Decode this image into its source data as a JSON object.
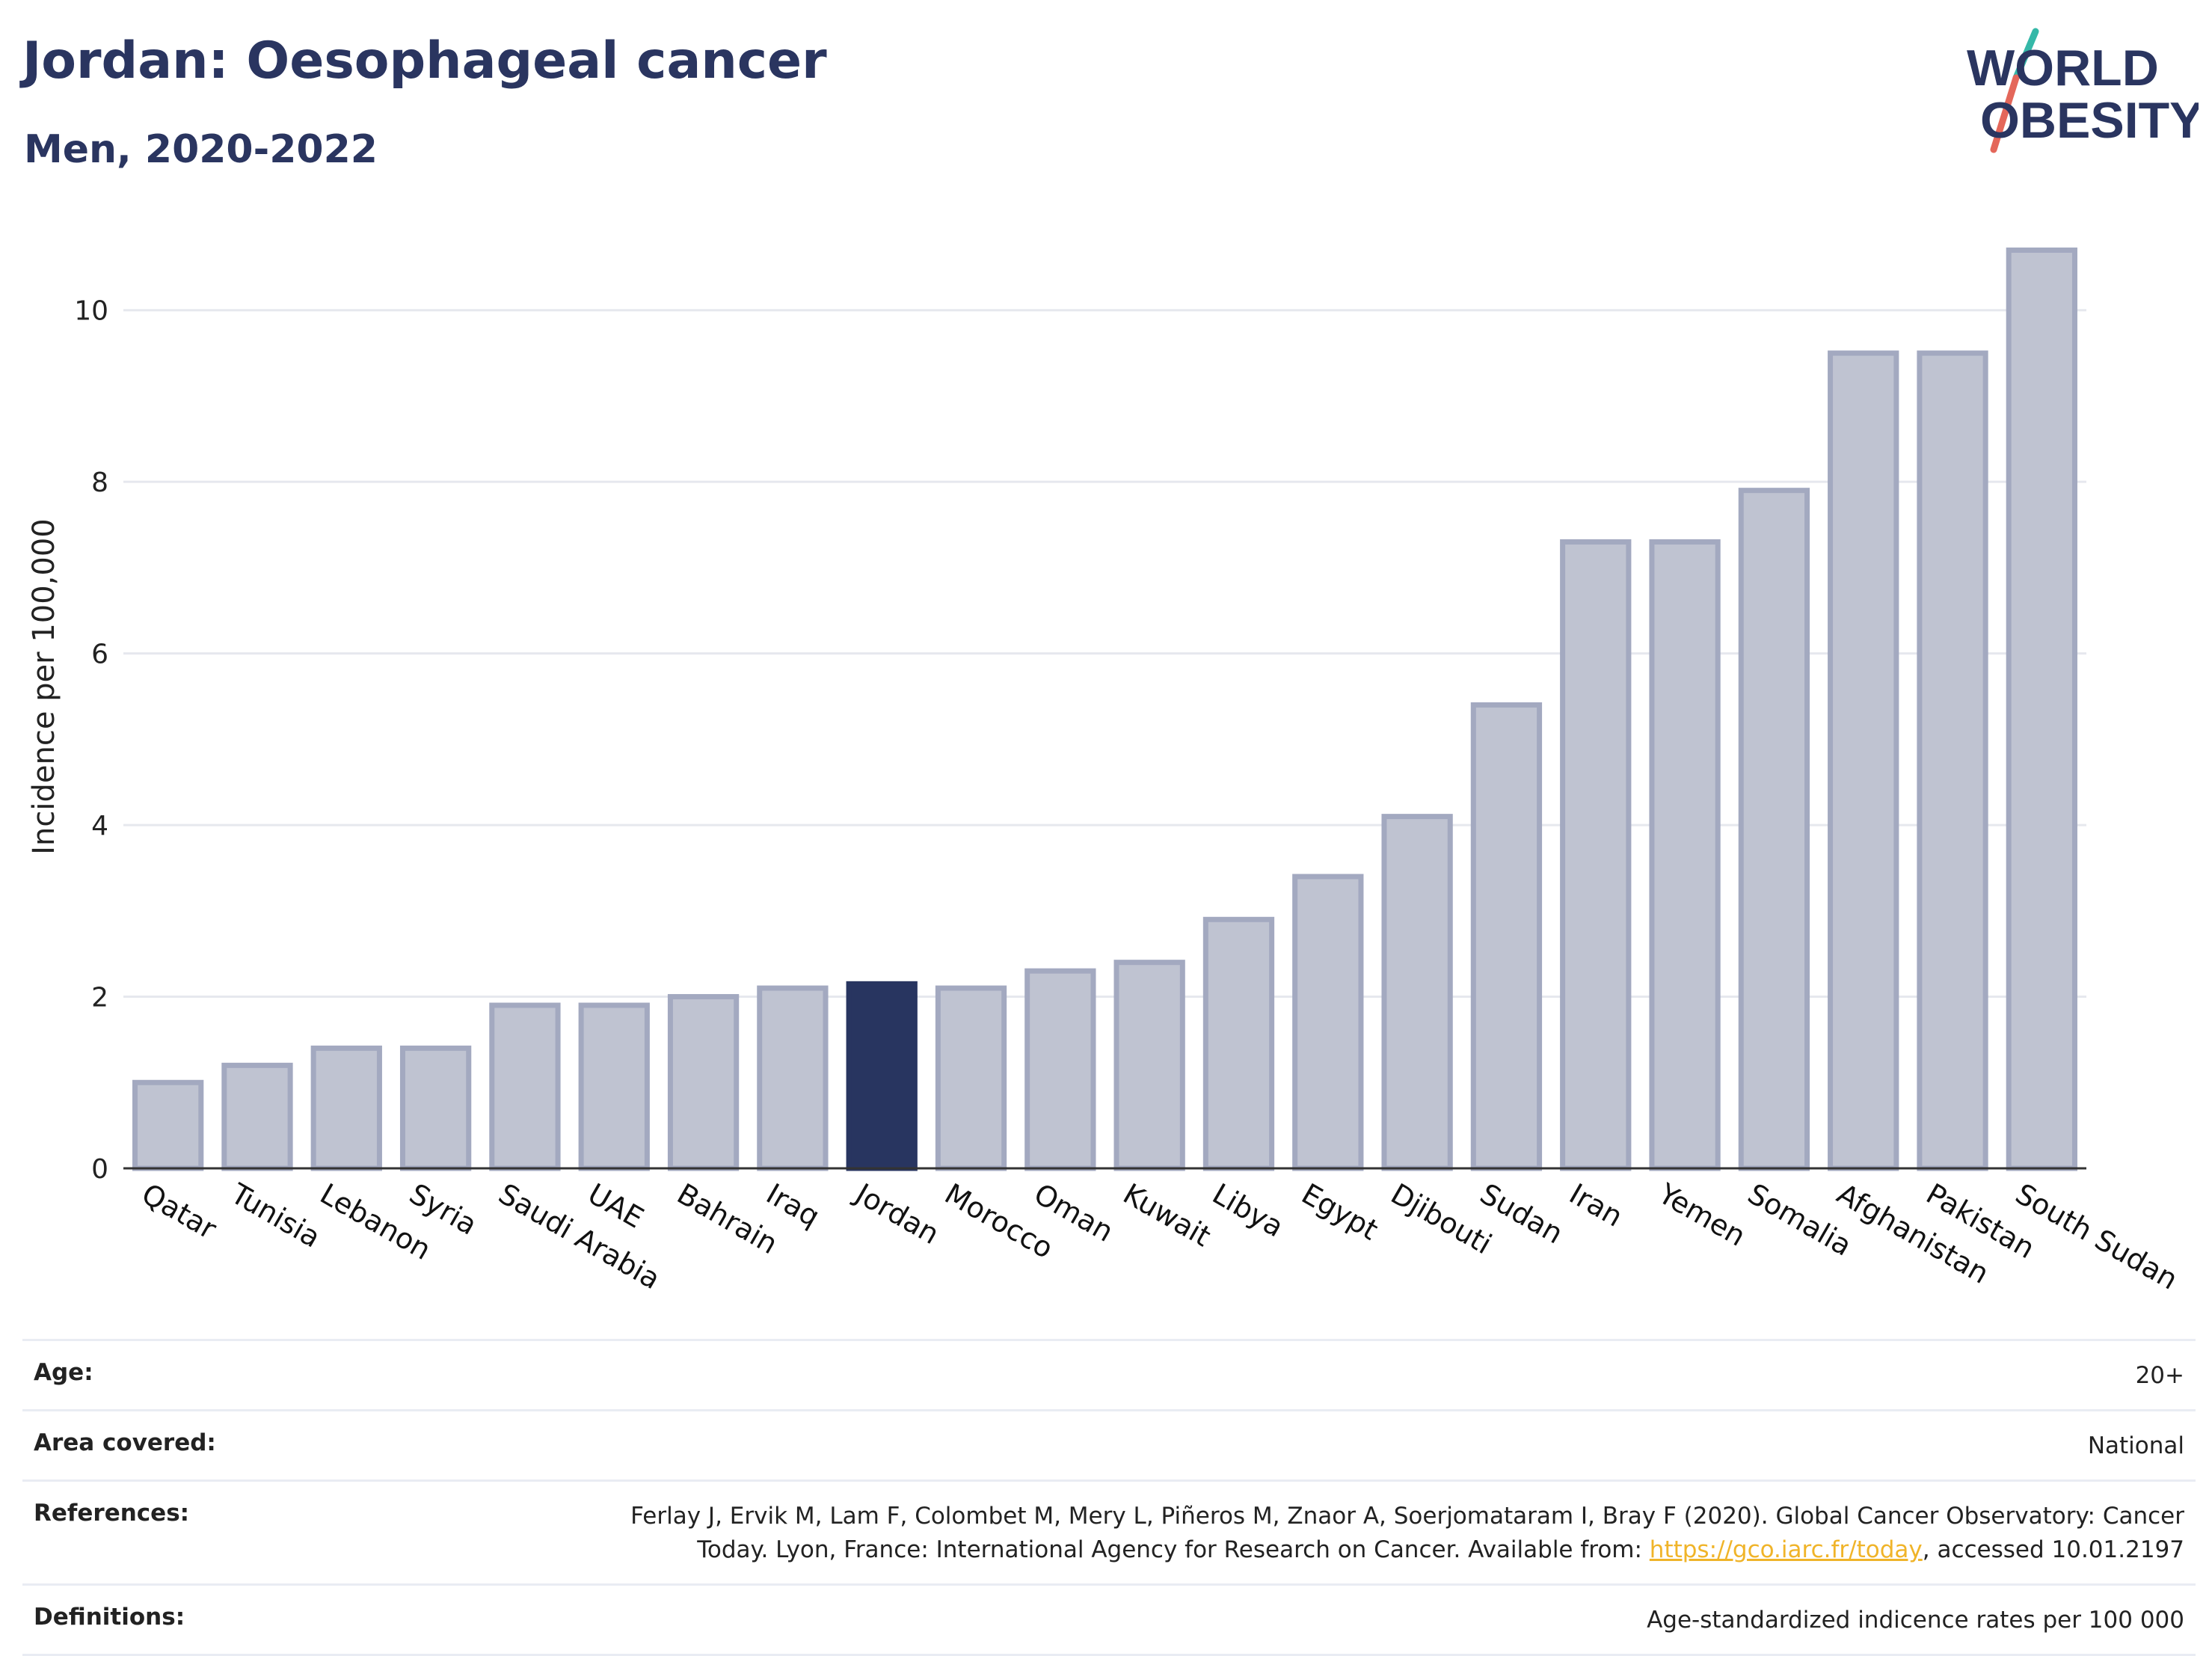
{
  "header": {
    "title": "Jordan: Oesophageal cancer",
    "subtitle": "Men, 2020-2022"
  },
  "logo": {
    "line1": "WORLD",
    "line2": "OBESITY",
    "slash_colors": [
      "#35b8a8",
      "#e4675a"
    ],
    "text_color": "#2a3560"
  },
  "colors": {
    "bar_default_fill": "#bfc3d1",
    "bar_default_stroke": "#a3a9c0",
    "bar_highlight": "#283560",
    "axis": "#333333",
    "grid": "#e6e8ee"
  },
  "chart_data": {
    "type": "bar",
    "ylabel": "Incidence per 100,000",
    "xlabel": "",
    "ylim": [
      0,
      11
    ],
    "yticks": [
      0,
      2,
      4,
      6,
      8,
      10
    ],
    "grid": true,
    "highlight": "Jordan",
    "categories": [
      "Qatar",
      "Tunisia",
      "Lebanon",
      "Syria",
      "Saudi Arabia",
      "UAE",
      "Bahrain",
      "Iraq",
      "Jordan",
      "Morocco",
      "Oman",
      "Kuwait",
      "Libya",
      "Egypt",
      "Djibouti",
      "Sudan",
      "Iran",
      "Yemen",
      "Somalia",
      "Afghanistan",
      "Pakistan",
      "South Sudan"
    ],
    "values": [
      1.0,
      1.2,
      1.4,
      1.4,
      1.9,
      1.9,
      2.0,
      2.1,
      2.15,
      2.1,
      2.3,
      2.4,
      2.9,
      3.4,
      4.1,
      5.4,
      7.3,
      7.3,
      7.9,
      9.5,
      9.5,
      10.7
    ]
  },
  "meta": {
    "age_label": "Age:",
    "age_value": "20+",
    "area_label": "Area covered:",
    "area_value": "National",
    "references_label": "References:",
    "references_text_1": "Ferlay J, Ervik M, Lam F, Colombet M, Mery L, Piñeros M, Znaor A, Soerjomataram I, Bray F (2020). Global Cancer Observatory: Cancer Today. Lyon, France: International Agency for Research on Cancer. Available from: ",
    "references_link": "https://gco.iarc.fr/today",
    "references_text_2": ", accessed 10.01.2197",
    "definitions_label": "Definitions:",
    "definitions_value": "Age-standardized indicence rates per 100 000"
  }
}
